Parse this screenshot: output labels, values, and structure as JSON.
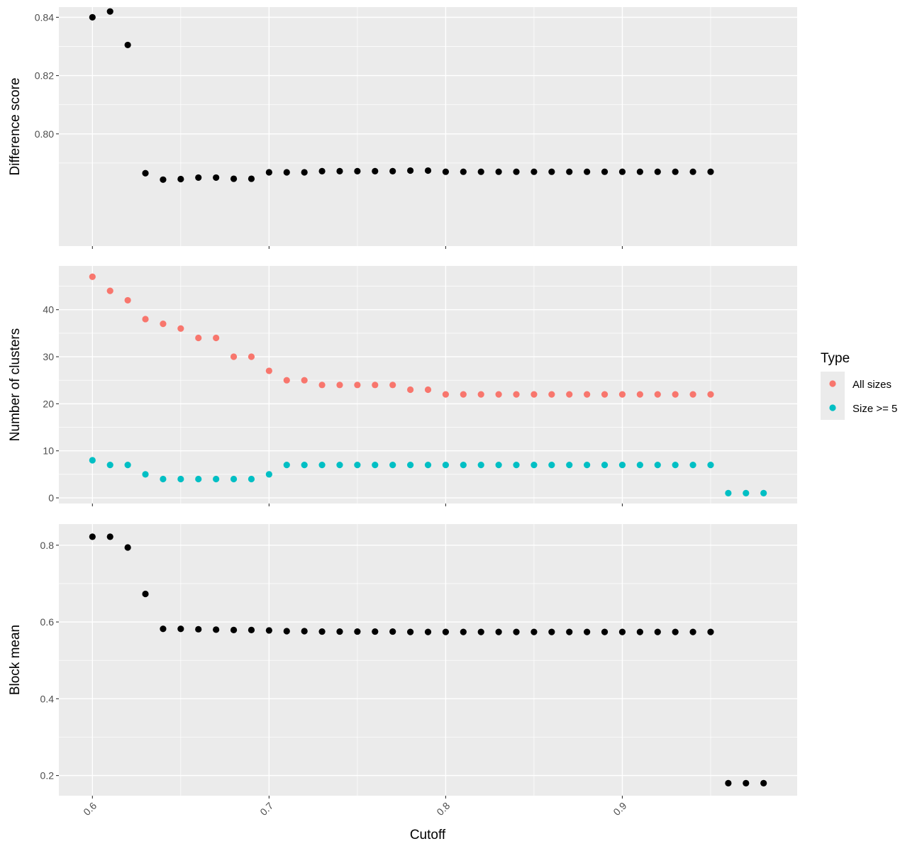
{
  "colors": {
    "panel_bg": "#EBEBEB",
    "grid": "#FFFFFF",
    "point_default": "#000000",
    "all_sizes": "#F8766D",
    "size_ge_5": "#00BFC4",
    "legend_key_bg": "#EBEBEB"
  },
  "xaxis": {
    "title": "Cutoff",
    "range": [
      0.581,
      0.999
    ],
    "ticks": [
      0.6,
      0.7,
      0.8,
      0.9
    ],
    "tick_labels": [
      "0.6",
      "0.7",
      "0.8",
      "0.9"
    ]
  },
  "legend": {
    "title": "Type",
    "placement": "right",
    "entries": [
      "All sizes",
      "Size >= 5"
    ]
  },
  "chart_data": [
    {
      "type": "scatter",
      "ylabel": "Difference score",
      "ylim": [
        0.7615,
        0.8435
      ],
      "yticks": [
        0.8,
        0.82,
        0.84
      ],
      "ytick_labels": [
        "0.80",
        "0.82",
        "0.84"
      ],
      "series": [
        {
          "color_key": "point_default",
          "x": [
            0.6,
            0.61,
            0.62,
            0.63,
            0.64,
            0.65,
            0.66,
            0.67,
            0.68,
            0.69,
            0.7,
            0.71,
            0.72,
            0.73,
            0.74,
            0.75,
            0.76,
            0.77,
            0.78,
            0.79,
            0.8,
            0.81,
            0.82,
            0.83,
            0.84,
            0.85,
            0.86,
            0.87,
            0.88,
            0.89,
            0.9,
            0.91,
            0.92,
            0.93,
            0.94,
            0.95
          ],
          "y": [
            0.84,
            0.842,
            0.8305,
            0.7865,
            0.7843,
            0.7845,
            0.785,
            0.785,
            0.7846,
            0.7846,
            0.7868,
            0.7868,
            0.7868,
            0.7872,
            0.7872,
            0.7872,
            0.7872,
            0.7872,
            0.7874,
            0.7874,
            0.787,
            0.787,
            0.787,
            0.787,
            0.787,
            0.787,
            0.787,
            0.787,
            0.787,
            0.787,
            0.787,
            0.787,
            0.787,
            0.787,
            0.787,
            0.787
          ]
        }
      ]
    },
    {
      "type": "scatter",
      "ylabel": "Number of clusters",
      "ylim": [
        -1.2,
        49.3
      ],
      "yticks": [
        0,
        10,
        20,
        30,
        40
      ],
      "ytick_labels": [
        "0",
        "10",
        "20",
        "30",
        "40"
      ],
      "series": [
        {
          "name": "All sizes",
          "color_key": "all_sizes",
          "x": [
            0.6,
            0.61,
            0.62,
            0.63,
            0.64,
            0.65,
            0.66,
            0.67,
            0.68,
            0.69,
            0.7,
            0.71,
            0.72,
            0.73,
            0.74,
            0.75,
            0.76,
            0.77,
            0.78,
            0.79,
            0.8,
            0.81,
            0.82,
            0.83,
            0.84,
            0.85,
            0.86,
            0.87,
            0.88,
            0.89,
            0.9,
            0.91,
            0.92,
            0.93,
            0.94,
            0.95
          ],
          "y": [
            47,
            44,
            42,
            38,
            37,
            36,
            34,
            34,
            30,
            30,
            27,
            25,
            25,
            24,
            24,
            24,
            24,
            24,
            23,
            23,
            22,
            22,
            22,
            22,
            22,
            22,
            22,
            22,
            22,
            22,
            22,
            22,
            22,
            22,
            22,
            22
          ]
        },
        {
          "name": "Size >= 5",
          "color_key": "size_ge_5",
          "x": [
            0.6,
            0.61,
            0.62,
            0.63,
            0.64,
            0.65,
            0.66,
            0.67,
            0.68,
            0.69,
            0.7,
            0.71,
            0.72,
            0.73,
            0.74,
            0.75,
            0.76,
            0.77,
            0.78,
            0.79,
            0.8,
            0.81,
            0.82,
            0.83,
            0.84,
            0.85,
            0.86,
            0.87,
            0.88,
            0.89,
            0.9,
            0.91,
            0.92,
            0.93,
            0.94,
            0.95,
            0.96,
            0.97,
            0.98
          ],
          "y": [
            8,
            7,
            7,
            5,
            4,
            4,
            4,
            4,
            4,
            4,
            5,
            7,
            7,
            7,
            7,
            7,
            7,
            7,
            7,
            7,
            7,
            7,
            7,
            7,
            7,
            7,
            7,
            7,
            7,
            7,
            7,
            7,
            7,
            7,
            7,
            7,
            1,
            1,
            1
          ]
        }
      ]
    },
    {
      "type": "scatter",
      "xlabel": "Cutoff",
      "ylabel": "Block mean",
      "ylim": [
        0.1475,
        0.855
      ],
      "yticks": [
        0.2,
        0.4,
        0.6,
        0.8
      ],
      "ytick_labels": [
        "0.2",
        "0.4",
        "0.6",
        "0.8"
      ],
      "series": [
        {
          "color_key": "point_default",
          "x": [
            0.6,
            0.61,
            0.62,
            0.63,
            0.64,
            0.65,
            0.66,
            0.67,
            0.68,
            0.69,
            0.7,
            0.71,
            0.72,
            0.73,
            0.74,
            0.75,
            0.76,
            0.77,
            0.78,
            0.79,
            0.8,
            0.81,
            0.82,
            0.83,
            0.84,
            0.85,
            0.86,
            0.87,
            0.88,
            0.89,
            0.9,
            0.91,
            0.92,
            0.93,
            0.94,
            0.95,
            0.96,
            0.97,
            0.98
          ],
          "y": [
            0.822,
            0.822,
            0.794,
            0.673,
            0.582,
            0.582,
            0.581,
            0.58,
            0.579,
            0.579,
            0.578,
            0.576,
            0.576,
            0.575,
            0.575,
            0.575,
            0.575,
            0.575,
            0.574,
            0.574,
            0.574,
            0.574,
            0.574,
            0.574,
            0.574,
            0.574,
            0.574,
            0.574,
            0.574,
            0.574,
            0.574,
            0.574,
            0.574,
            0.574,
            0.574,
            0.574,
            0.18,
            0.18,
            0.18
          ]
        }
      ]
    }
  ]
}
